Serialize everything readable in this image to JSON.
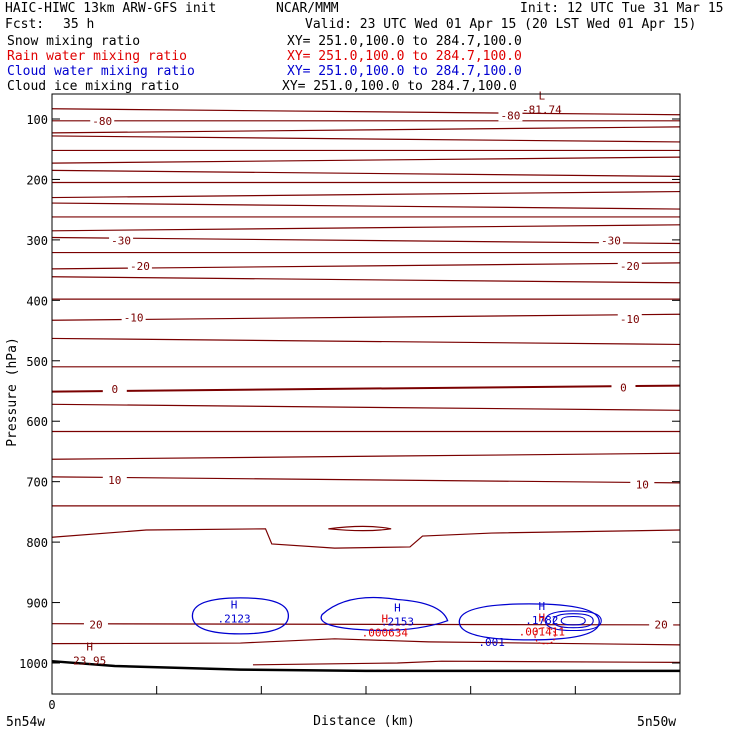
{
  "header": {
    "model": "HAIC-HIWC 13km ARW-GFS init",
    "org": "NCAR/MMM",
    "init": "Init: 12 UTC Tue 31 Mar 15",
    "fcst_label": "Fcst:",
    "fcst_value": "35 h",
    "valid": "Valid: 23 UTC Wed 01 Apr 15 (20 LST Wed 01 Apr 15)"
  },
  "fields": [
    {
      "name": "Snow mixing ratio",
      "xy": "XY= 251.0,100.0 to 284.7,100.0",
      "color": "#000000"
    },
    {
      "name": "Rain water mixing ratio",
      "xy": "XY= 251.0,100.0 to 284.7,100.0",
      "color": "#e00000"
    },
    {
      "name": "Cloud water mixing ratio",
      "xy": "XY= 251.0,100.0 to 284.7,100.0",
      "color": "#0000d0"
    },
    {
      "name": "Cloud ice mixing ratio",
      "xy": "XY= 251.0,100.0 to 284.7,100.0",
      "color": "#000000"
    }
  ],
  "chart_data": {
    "type": "line",
    "ylabel": "Pressure (hPa)",
    "xlabel": "Distance (km)",
    "x_start_label": "0",
    "x_left_label": "5n54w",
    "x_right_label": "5n50w",
    "ylim": [
      1040,
      40
    ],
    "y_ticks": [
      100,
      200,
      300,
      400,
      500,
      600,
      700,
      800,
      900,
      1000
    ],
    "temperature_color": "#7a0000",
    "isotherm_labels": [
      {
        "text": "-80",
        "p": 103,
        "x": 0.08
      },
      {
        "text": "-80",
        "p": 94,
        "x": 0.73
      },
      {
        "text": "-30",
        "p": 301,
        "x": 0.11
      },
      {
        "text": "-30",
        "p": 301,
        "x": 0.89
      },
      {
        "text": "-20",
        "p": 343,
        "x": 0.14
      },
      {
        "text": "-20",
        "p": 343,
        "x": 0.92
      },
      {
        "text": "-10",
        "p": 428,
        "x": 0.13
      },
      {
        "text": "-10",
        "p": 431,
        "x": 0.92
      },
      {
        "text": "0",
        "p": 547,
        "x": 0.1
      },
      {
        "text": "0",
        "p": 544,
        "x": 0.91
      },
      {
        "text": "10",
        "p": 697,
        "x": 0.1
      },
      {
        "text": "10",
        "p": 705,
        "x": 0.94
      },
      {
        "text": "20",
        "p": 936,
        "x": 0.07
      },
      {
        "text": "20",
        "p": 936,
        "x": 0.97
      }
    ],
    "extrema": [
      {
        "mark": "L",
        "value": "-81.74",
        "p": 78,
        "x": 0.78,
        "color": "#7a0000"
      },
      {
        "mark": "H",
        "value": "23.95",
        "p": 989,
        "x": 0.06,
        "color": "#7a0000"
      },
      {
        "mark": "H",
        "value": ".2123",
        "p": 920,
        "x": 0.29,
        "color": "#0000d0"
      },
      {
        "mark": "H",
        "value": ".2153",
        "p": 925,
        "x": 0.55,
        "color": "#0000d0"
      },
      {
        "mark": "H",
        "value": ".1782",
        "p": 922,
        "x": 0.78,
        "color": "#0000d0"
      },
      {
        "mark": "H",
        "value": ".000634",
        "p": 943,
        "x": 0.53,
        "color": "#e00000"
      },
      {
        "mark": "H",
        "value": ".001411",
        "p": 941,
        "x": 0.78,
        "color": "#e00000"
      }
    ],
    "cloud_contour_labels": [
      {
        "text": ".001",
        "p": 972,
        "x": 0.7,
        "color": "#0000d0"
      }
    ],
    "surface_pressure": [
      {
        "x": 0.0,
        "p": 997
      },
      {
        "x": 0.1,
        "p": 1005
      },
      {
        "x": 0.3,
        "p": 1011
      },
      {
        "x": 0.5,
        "p": 1013
      },
      {
        "x": 0.7,
        "p": 1013
      },
      {
        "x": 1.0,
        "p": 1013
      }
    ]
  }
}
